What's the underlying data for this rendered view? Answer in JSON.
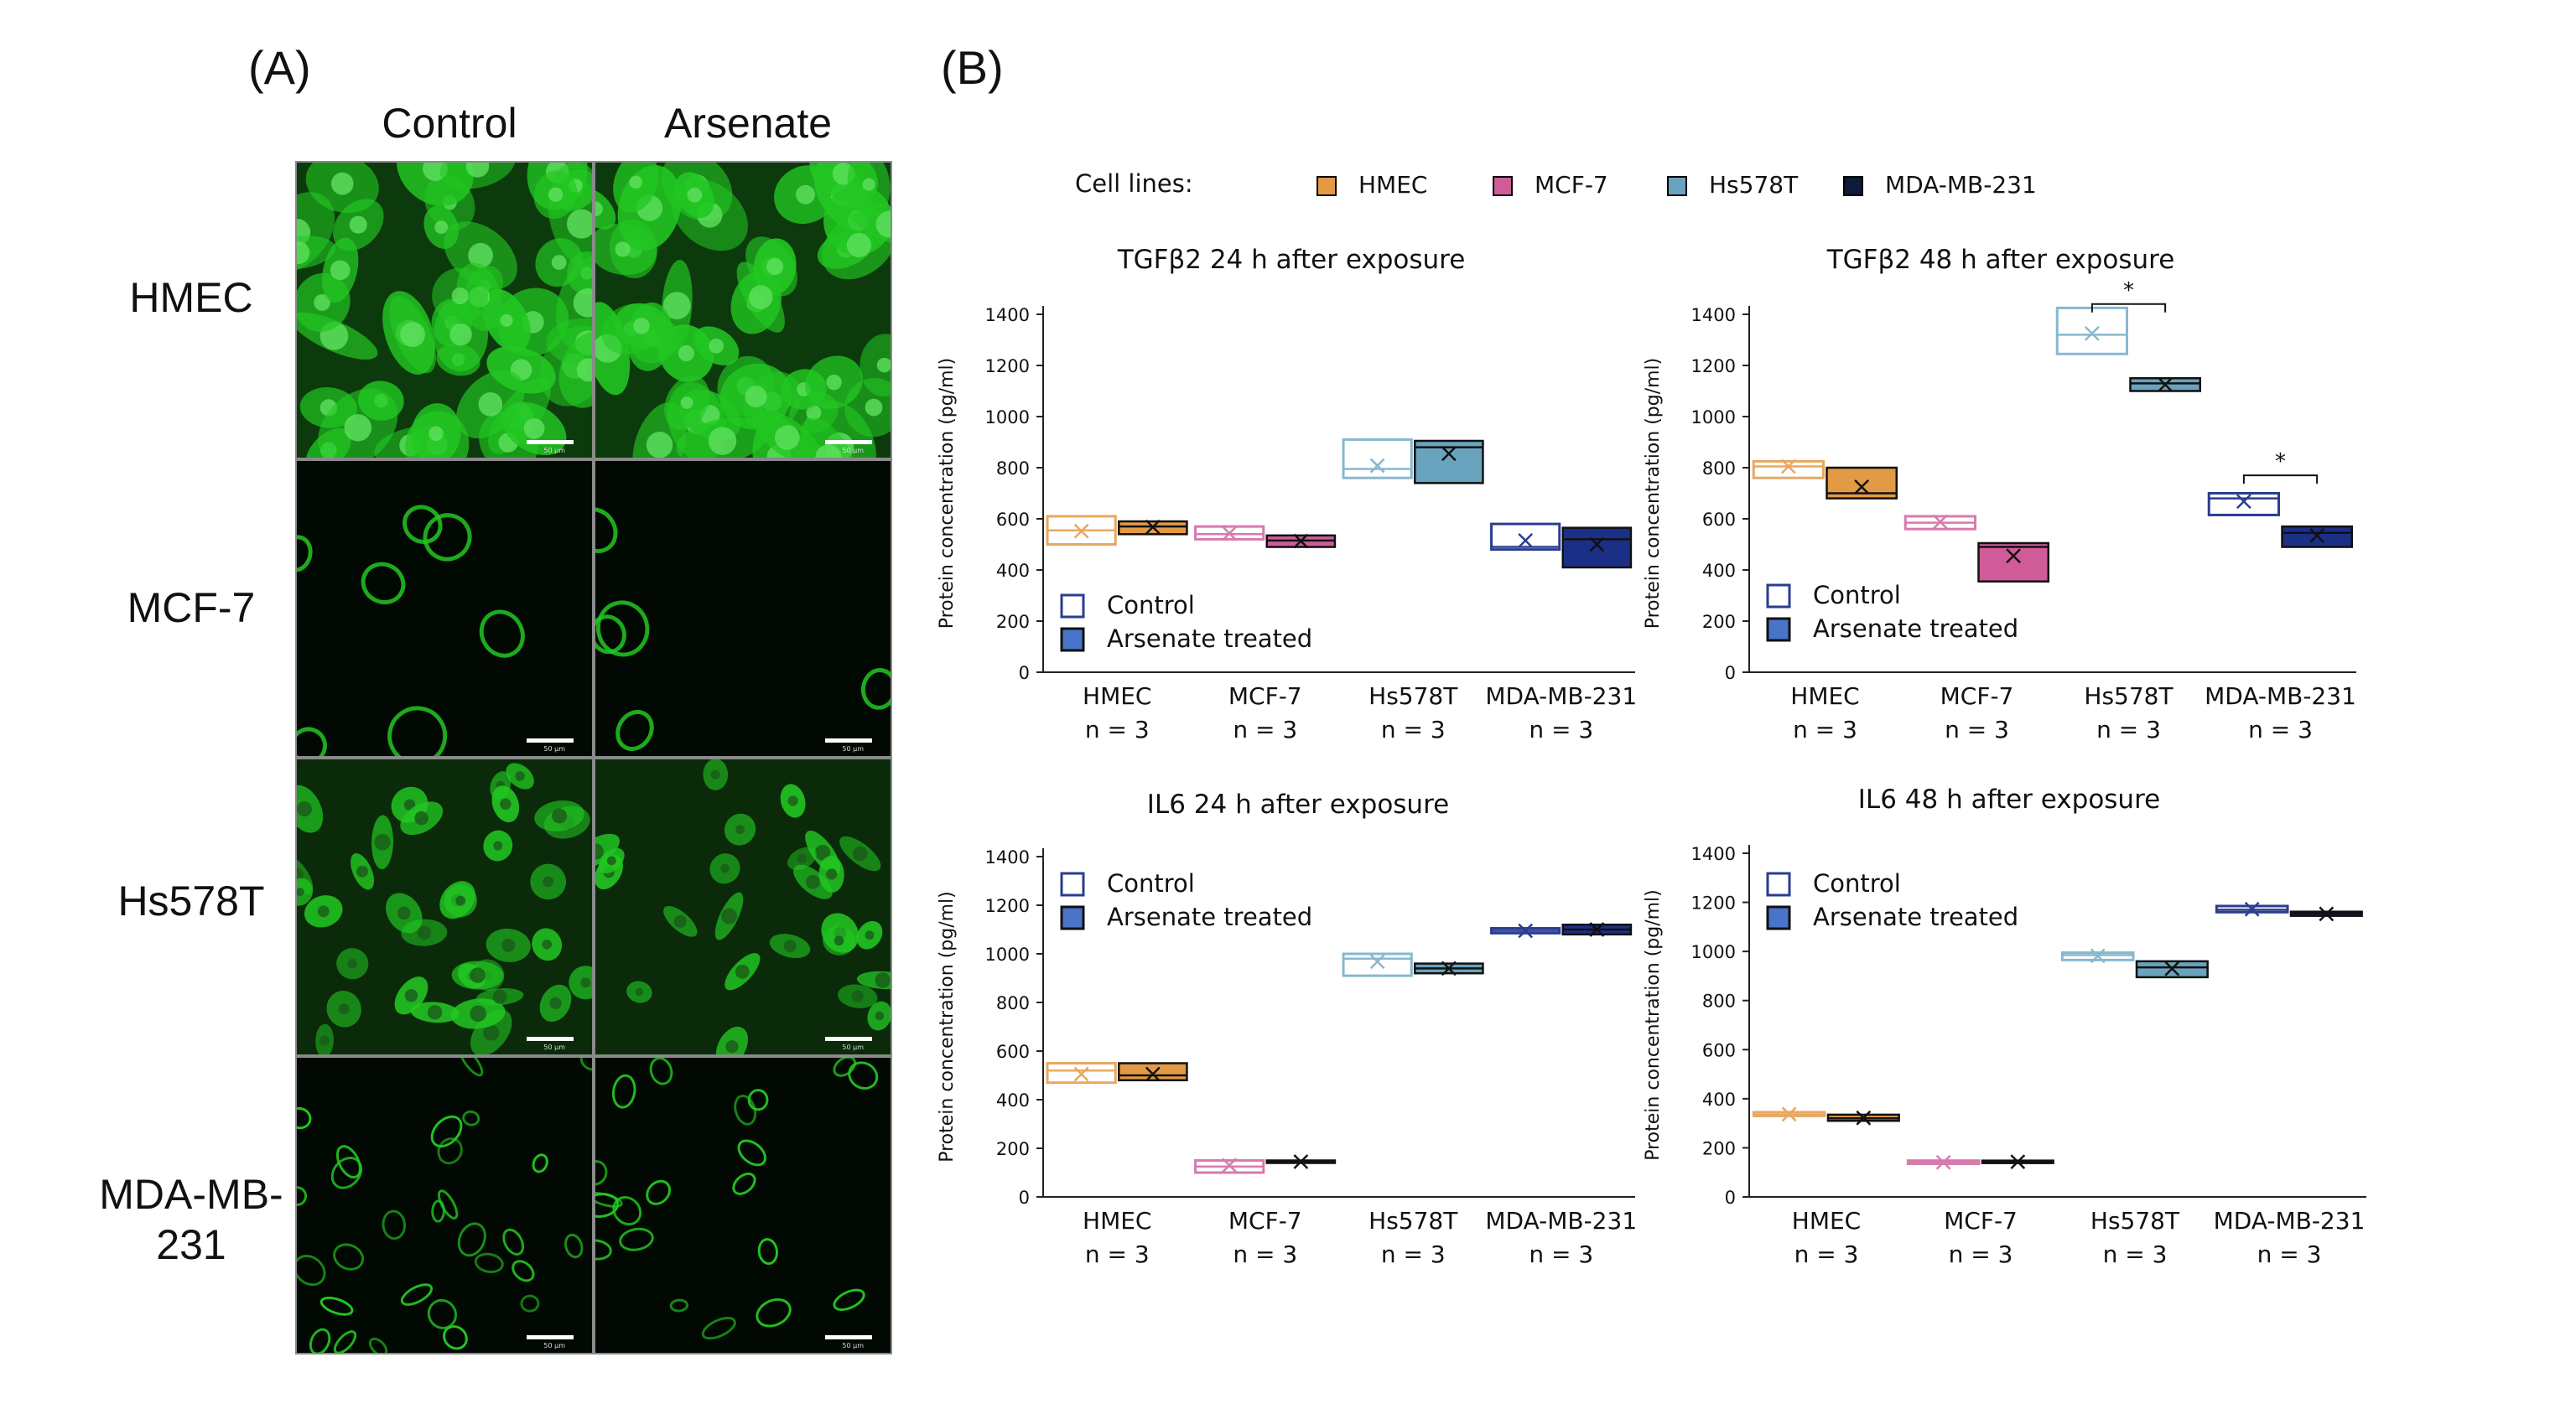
{
  "panel_a": {
    "label": "(A)",
    "columns": [
      "Control",
      "Arsenate"
    ],
    "rows": [
      "HMEC",
      "MCF-7",
      "Hs578T",
      "MDA-MB-231"
    ],
    "row_display": [
      [
        "HMEC"
      ],
      [
        "MCF-7"
      ],
      [
        "Hs578T"
      ],
      [
        "MDA-MB-",
        "231"
      ]
    ],
    "scale_label": "50 µm",
    "fluor_color": "#22c722"
  },
  "panel_b": {
    "label": "(B)",
    "legend_title": "Cell lines:",
    "cell_lines": [
      {
        "name": "HMEC",
        "color": "#e39a45"
      },
      {
        "name": "MCF-7",
        "color": "#cf5c98"
      },
      {
        "name": "Hs578T",
        "color": "#6aa3bd"
      },
      {
        "name": "MDA-MB-231",
        "color": "#0e1a3a"
      }
    ],
    "treatment_legend": {
      "control": "Control",
      "treated": "Arsenate treated"
    }
  },
  "chart_data": [
    {
      "type": "box",
      "title": "TGFβ2 24 h after exposure",
      "ylabel": "Protein concentration (pg/ml)",
      "ylim": [
        0,
        1400
      ],
      "yticks": [
        0,
        200,
        400,
        600,
        800,
        1000,
        1200,
        1400
      ],
      "categories": [
        "HMEC",
        "MCF-7",
        "Hs578T",
        "MDA-MB-231"
      ],
      "n_labels": [
        "n = 3",
        "n = 3",
        "n = 3",
        "n = 3"
      ],
      "legend_position": "bottom-left",
      "series": [
        {
          "name": "Control",
          "boxes": [
            {
              "low": 500,
              "median": 555,
              "high": 610,
              "mean": 552
            },
            {
              "low": 520,
              "median": 540,
              "high": 570,
              "mean": 543
            },
            {
              "low": 760,
              "median": 795,
              "high": 910,
              "mean": 808
            },
            {
              "low": 480,
              "median": 490,
              "high": 580,
              "mean": 515
            }
          ]
        },
        {
          "name": "Arsenate treated",
          "boxes": [
            {
              "low": 540,
              "median": 570,
              "high": 590,
              "mean": 568
            },
            {
              "low": 490,
              "median": 515,
              "high": 535,
              "mean": 513
            },
            {
              "low": 740,
              "median": 880,
              "high": 905,
              "mean": 855
            },
            {
              "low": 410,
              "median": 520,
              "high": 565,
              "mean": 500
            }
          ]
        }
      ],
      "significance": []
    },
    {
      "type": "box",
      "title": "TGFβ2 48 h after exposure",
      "ylabel": "Protein concentration (pg/ml)",
      "ylim": [
        0,
        1400
      ],
      "yticks": [
        0,
        200,
        400,
        600,
        800,
        1000,
        1200,
        1400
      ],
      "categories": [
        "HMEC",
        "MCF-7",
        "Hs578T",
        "MDA-MB-231"
      ],
      "n_labels": [
        "n = 3",
        "n = 3",
        "n = 3",
        "n = 3"
      ],
      "legend_position": "bottom-left",
      "series": [
        {
          "name": "Control",
          "boxes": [
            {
              "low": 760,
              "median": 805,
              "high": 825,
              "mean": 805
            },
            {
              "low": 560,
              "median": 585,
              "high": 610,
              "mean": 588
            },
            {
              "low": 1245,
              "median": 1320,
              "high": 1425,
              "mean": 1325
            },
            {
              "low": 615,
              "median": 680,
              "high": 700,
              "mean": 668
            }
          ]
        },
        {
          "name": "Arsenate treated",
          "boxes": [
            {
              "low": 680,
              "median": 700,
              "high": 800,
              "mean": 725
            },
            {
              "low": 355,
              "median": 490,
              "high": 505,
              "mean": 455
            },
            {
              "low": 1100,
              "median": 1130,
              "high": 1150,
              "mean": 1125
            },
            {
              "low": 490,
              "median": 545,
              "high": 570,
              "mean": 535
            }
          ]
        }
      ],
      "significance": [
        {
          "category": "Hs578T",
          "label": "*",
          "bracket_value": 1440
        },
        {
          "category": "MDA-MB-231",
          "label": "*",
          "bracket_value": 770
        }
      ]
    },
    {
      "type": "box",
      "title": "IL6 24 h after exposure",
      "ylabel": "Protein concentration (pg/ml)",
      "ylim": [
        0,
        1400
      ],
      "yticks": [
        0,
        200,
        400,
        600,
        800,
        1000,
        1200,
        1400
      ],
      "categories": [
        "HMEC",
        "MCF-7",
        "Hs578T",
        "MDA-MB-231"
      ],
      "n_labels": [
        "n = 3",
        "n = 3",
        "n = 3",
        "n = 3"
      ],
      "legend_position": "top-left",
      "series": [
        {
          "name": "Control",
          "boxes": [
            {
              "low": 470,
              "median": 520,
              "high": 550,
              "mean": 505
            },
            {
              "low": 100,
              "median": 125,
              "high": 150,
              "mean": 130
            },
            {
              "low": 910,
              "median": 980,
              "high": 1000,
              "mean": 968
            },
            {
              "low": 1085,
              "median": 1095,
              "high": 1105,
              "mean": 1095
            }
          ]
        },
        {
          "name": "Arsenate treated",
          "boxes": [
            {
              "low": 480,
              "median": 500,
              "high": 550,
              "mean": 505
            },
            {
              "low": 140,
              "median": 145,
              "high": 150,
              "mean": 145
            },
            {
              "low": 920,
              "median": 940,
              "high": 960,
              "mean": 940
            },
            {
              "low": 1080,
              "median": 1100,
              "high": 1120,
              "mean": 1100
            }
          ]
        }
      ],
      "significance": []
    },
    {
      "type": "box",
      "title": "IL6 48 h after exposure",
      "ylabel": "Protein concentration (pg/ml)",
      "ylim": [
        0,
        1400
      ],
      "yticks": [
        0,
        200,
        400,
        600,
        800,
        1000,
        1200,
        1400
      ],
      "categories": [
        "HMEC",
        "MCF-7",
        "Hs578T",
        "MDA-MB-231"
      ],
      "n_labels": [
        "n = 3",
        "n = 3",
        "n = 3",
        "n = 3"
      ],
      "legend_position": "top-left",
      "series": [
        {
          "name": "Control",
          "boxes": [
            {
              "low": 330,
              "median": 335,
              "high": 345,
              "mean": 337
            },
            {
              "low": 135,
              "median": 140,
              "high": 148,
              "mean": 141
            },
            {
              "low": 965,
              "median": 985,
              "high": 995,
              "mean": 982
            },
            {
              "low": 1160,
              "median": 1170,
              "high": 1185,
              "mean": 1172
            }
          ]
        },
        {
          "name": "Arsenate treated",
          "boxes": [
            {
              "low": 310,
              "median": 320,
              "high": 335,
              "mean": 322
            },
            {
              "low": 138,
              "median": 143,
              "high": 148,
              "mean": 143
            },
            {
              "low": 895,
              "median": 935,
              "high": 960,
              "mean": 930
            },
            {
              "low": 1145,
              "median": 1155,
              "high": 1162,
              "mean": 1153
            }
          ]
        }
      ],
      "significance": []
    }
  ]
}
